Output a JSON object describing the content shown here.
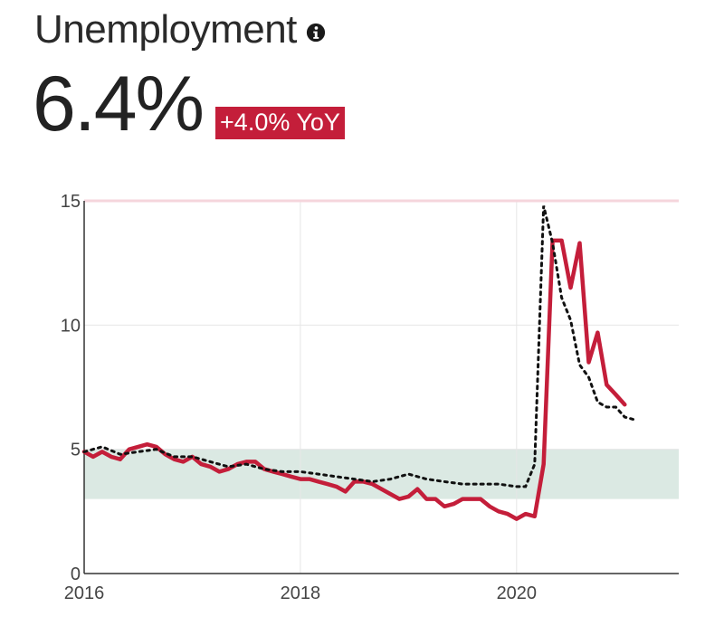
{
  "header": {
    "title": "Unemployment",
    "info_icon": "info-icon",
    "value": "6.4%",
    "change_badge": "+4.0% YoY"
  },
  "colors": {
    "actual_line": "#c41e3a",
    "badge_bg": "#c41e3a",
    "normal_band": "#dbe9e3",
    "threshold_line": "#f5d5dc",
    "grid": "#e6e6e6",
    "dotted_line": "#111111"
  },
  "chart_data": {
    "type": "line",
    "xlim": [
      2016,
      2021.5
    ],
    "ylim": [
      0,
      15
    ],
    "x_ticks": [
      2016,
      2018,
      2020
    ],
    "x_tick_labels": [
      "2016",
      "2018",
      "2020"
    ],
    "y_ticks": [
      0,
      5,
      10,
      15
    ],
    "y_tick_labels": [
      "0",
      "5",
      "10",
      "15"
    ],
    "band": [
      3,
      5
    ],
    "threshold": 15,
    "grid": true,
    "series": [
      {
        "style": "solid",
        "x": [
          2016.0,
          2016.083,
          2016.167,
          2016.25,
          2016.333,
          2016.417,
          2016.5,
          2016.583,
          2016.667,
          2016.75,
          2016.833,
          2016.917,
          2017.0,
          2017.083,
          2017.167,
          2017.25,
          2017.333,
          2017.417,
          2017.5,
          2017.583,
          2017.667,
          2017.75,
          2017.833,
          2017.917,
          2018.0,
          2018.083,
          2018.167,
          2018.25,
          2018.333,
          2018.417,
          2018.5,
          2018.583,
          2018.667,
          2018.75,
          2018.833,
          2018.917,
          2019.0,
          2019.083,
          2019.167,
          2019.25,
          2019.333,
          2019.417,
          2019.5,
          2019.583,
          2019.667,
          2019.75,
          2019.833,
          2019.917,
          2020.0,
          2020.083,
          2020.167,
          2020.25,
          2020.333,
          2020.417,
          2020.5,
          2020.583,
          2020.667,
          2020.75,
          2020.833,
          2020.917,
          2021.0
        ],
        "y": [
          4.9,
          4.7,
          4.9,
          4.7,
          4.6,
          5.0,
          5.1,
          5.2,
          5.1,
          4.8,
          4.6,
          4.5,
          4.7,
          4.4,
          4.3,
          4.1,
          4.2,
          4.4,
          4.5,
          4.5,
          4.2,
          4.1,
          4.0,
          3.9,
          3.8,
          3.8,
          3.7,
          3.6,
          3.5,
          3.3,
          3.7,
          3.7,
          3.6,
          3.4,
          3.2,
          3.0,
          3.1,
          3.4,
          3.0,
          3.0,
          2.7,
          2.8,
          3.0,
          3.0,
          3.0,
          2.7,
          2.5,
          2.4,
          2.2,
          2.4,
          2.3,
          4.4,
          13.4,
          13.4,
          11.5,
          13.3,
          8.5,
          9.7,
          7.6,
          7.2,
          6.8
        ]
      },
      {
        "style": "dotted",
        "x": [
          2016.0,
          2016.167,
          2016.333,
          2016.5,
          2016.667,
          2016.833,
          2017.0,
          2017.167,
          2017.333,
          2017.5,
          2017.667,
          2017.833,
          2018.0,
          2018.167,
          2018.333,
          2018.5,
          2018.667,
          2018.833,
          2019.0,
          2019.167,
          2019.333,
          2019.5,
          2019.667,
          2019.833,
          2020.0,
          2020.083,
          2020.167,
          2020.25,
          2020.333,
          2020.417,
          2020.5,
          2020.583,
          2020.667,
          2020.75,
          2020.833,
          2020.917,
          2021.0,
          2021.083
        ],
        "y": [
          4.9,
          5.1,
          4.8,
          4.9,
          5.0,
          4.7,
          4.7,
          4.5,
          4.3,
          4.4,
          4.2,
          4.1,
          4.1,
          4.0,
          3.9,
          3.8,
          3.7,
          3.8,
          4.0,
          3.8,
          3.7,
          3.6,
          3.6,
          3.6,
          3.5,
          3.5,
          4.4,
          14.8,
          13.3,
          11.1,
          10.2,
          8.4,
          7.9,
          6.9,
          6.7,
          6.7,
          6.3,
          6.2
        ]
      }
    ]
  }
}
